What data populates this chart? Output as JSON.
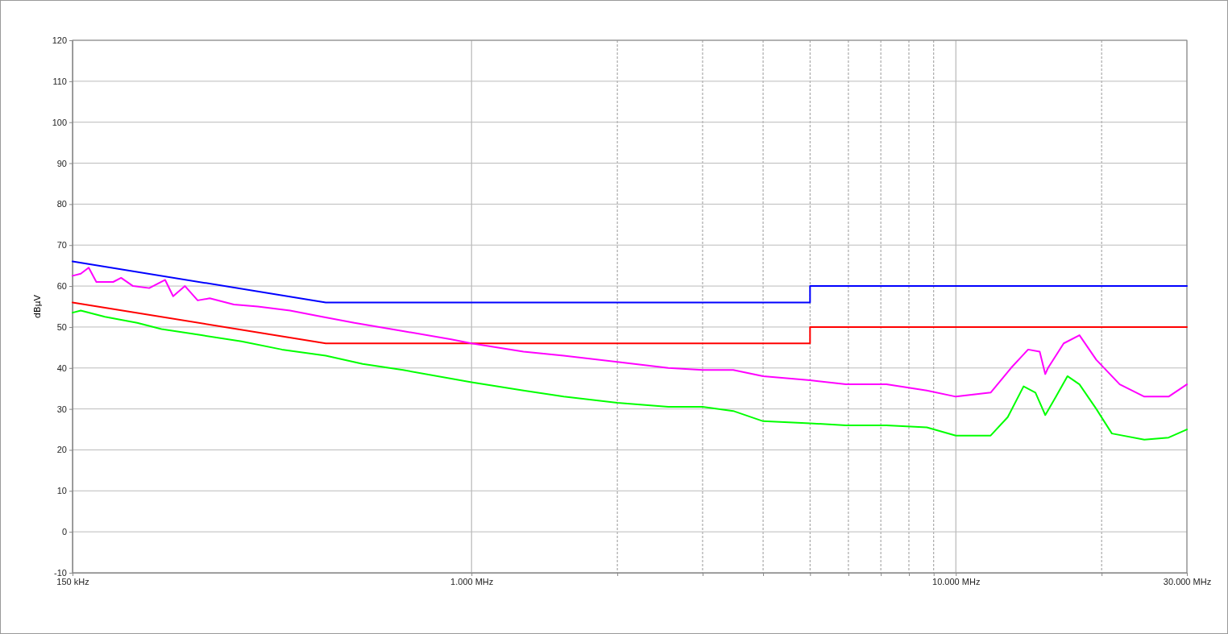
{
  "chart_data": {
    "type": "line",
    "ylabel": "dBµV",
    "log": "x",
    "grid": true,
    "marker": "none",
    "line_style": "solid",
    "xlim": [
      150,
      30000
    ],
    "ylim": [
      -10,
      120
    ],
    "xticks": [
      {
        "value": 150,
        "label": "150 kHz"
      },
      {
        "value": 1000,
        "label": "1.000 MHz"
      },
      {
        "value": 2000,
        "label": null
      },
      {
        "value": 3000,
        "label": null
      },
      {
        "value": 4000,
        "label": null
      },
      {
        "value": 5000,
        "label": null
      },
      {
        "value": 6000,
        "label": null
      },
      {
        "value": 7000,
        "label": null
      },
      {
        "value": 8000,
        "label": null
      },
      {
        "value": 9000,
        "label": null
      },
      {
        "value": 10000,
        "label": "10.000 MHz"
      },
      {
        "value": 20000,
        "label": null
      },
      {
        "value": 30000,
        "label": "30.000 MHz"
      }
    ],
    "yticks": [
      -10,
      0,
      10,
      20,
      30,
      40,
      50,
      60,
      70,
      80,
      90,
      100,
      110,
      120
    ],
    "series": [
      {
        "color": "#0000ff",
        "x": [
          150,
          500,
          5000,
          5000,
          30000
        ],
        "values": [
          66,
          56,
          56,
          60,
          60
        ]
      },
      {
        "color": "#ff0000",
        "x": [
          150,
          500,
          5000,
          5000,
          30000
        ],
        "values": [
          56,
          46,
          46,
          50,
          50
        ]
      },
      {
        "color": "#ff00ff",
        "x": [
          150,
          156,
          162,
          168,
          182,
          189,
          200,
          216,
          233,
          242,
          256,
          272,
          288,
          323,
          362,
          422,
          492,
          573,
          722,
          908,
          1000,
          1280,
          1550,
          2000,
          2550,
          3000,
          3470,
          4000,
          5000,
          5930,
          7190,
          8710,
          10000,
          11800,
          13000,
          14100,
          14900,
          15300,
          15500,
          16700,
          18000,
          19500,
          21800,
          24500,
          27500,
          30000
        ],
        "values": [
          62.5,
          63,
          64.5,
          61,
          61,
          62,
          60,
          59.5,
          61.5,
          57.5,
          60,
          56.5,
          57,
          55.5,
          55,
          54,
          52.5,
          51,
          49,
          47,
          46,
          44,
          43,
          41.5,
          40,
          39.5,
          39.5,
          38,
          37,
          36,
          36,
          34.5,
          33,
          34,
          40,
          44.5,
          44,
          38.5,
          40,
          46,
          48,
          42,
          36,
          33,
          33,
          36
        ]
      },
      {
        "color": "#00ff00",
        "x": [
          150,
          156,
          175,
          204,
          229,
          277,
          335,
          406,
          500,
          596,
          722,
          1000,
          1280,
          1550,
          2000,
          2550,
          3000,
          3470,
          4000,
          5000,
          5930,
          7190,
          8710,
          10000,
          11800,
          12800,
          13800,
          14600,
          15300,
          16100,
          17000,
          18000,
          19500,
          21000,
          24500,
          27500,
          30000
        ],
        "values": [
          53.5,
          54,
          52.5,
          51,
          49.5,
          48,
          46.5,
          44.5,
          43,
          41,
          39.5,
          36.5,
          34.5,
          33,
          31.5,
          30.5,
          30.5,
          29.5,
          27,
          26.5,
          26,
          26,
          25.5,
          23.5,
          23.5,
          28,
          35.5,
          34,
          28.5,
          33,
          38,
          36,
          30,
          24,
          22.5,
          23,
          25
        ]
      }
    ]
  }
}
